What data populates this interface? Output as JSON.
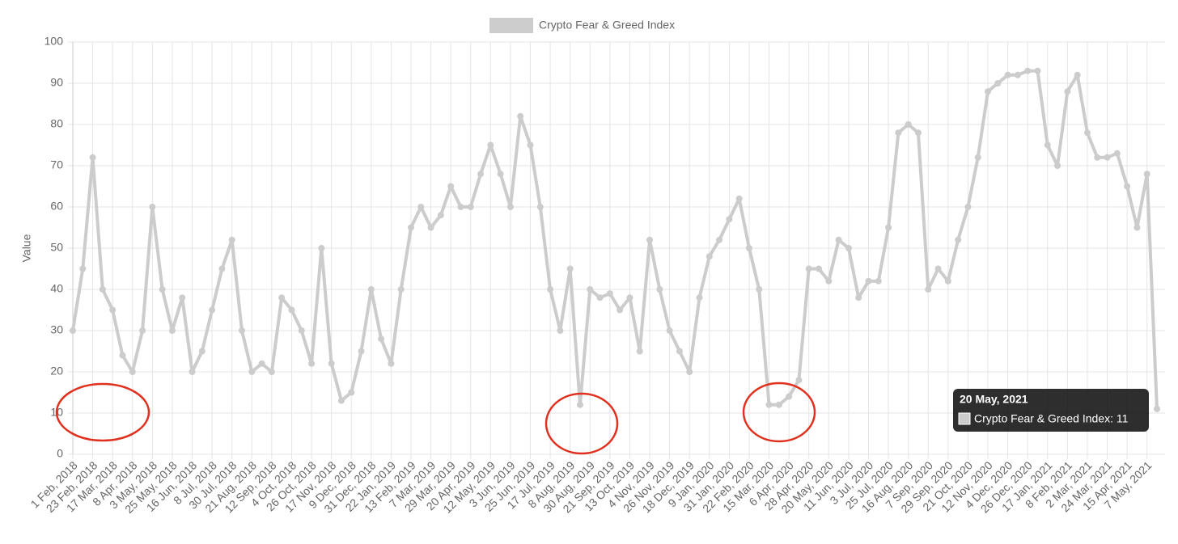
{
  "chart_data": {
    "type": "line",
    "y_label": "Value",
    "ylim": [
      0,
      100
    ],
    "yticks": [
      0,
      10,
      20,
      30,
      40,
      50,
      60,
      70,
      80,
      90,
      100
    ],
    "grid": true,
    "legend": "top",
    "categories": [
      "1 Feb, 2018",
      null,
      "23 Feb, 2018",
      null,
      "17 Mar, 2018",
      null,
      "8 Apr, 2018",
      null,
      "3 May, 2018",
      null,
      "25 May, 2018",
      null,
      "16 Jun, 2018",
      null,
      "8 Jul, 2018",
      null,
      "30 Jul, 2018",
      null,
      "21 Aug, 2018",
      null,
      "12 Sep, 2018",
      null,
      "4 Oct, 2018",
      null,
      "26 Oct, 2018",
      null,
      "17 Nov, 2018",
      null,
      "9 Dec, 2018",
      null,
      "31 Dec, 2018",
      null,
      "22 Jan, 2019",
      null,
      "13 Feb, 2019",
      null,
      "7 Mar, 2019",
      null,
      "29 Mar, 2019",
      null,
      "20 Apr, 2019",
      null,
      "12 May, 2019",
      null,
      "3 Jun, 2019",
      null,
      "25 Jun, 2019",
      null,
      "17 Jul, 2019",
      null,
      "8 Aug, 2019",
      null,
      "30 Aug, 2019",
      null,
      "21 Sep, 2019",
      null,
      "13 Oct, 2019",
      null,
      "4 Nov, 2019",
      null,
      "26 Nov, 2019",
      null,
      "18 Dec, 2019",
      null,
      "9 Jan, 2020",
      null,
      "31 Jan, 2020",
      null,
      "22 Feb, 2020",
      null,
      "15 Mar, 2020",
      null,
      "6 Apr, 2020",
      null,
      "28 Apr, 2020",
      null,
      "20 May, 2020",
      null,
      "11 Jun, 2020",
      null,
      "3 Jul, 2020",
      null,
      "25 Jul, 2020",
      null,
      "16 Aug, 2020",
      null,
      "7 Sep, 2020",
      null,
      "29 Sep, 2020",
      null,
      "21 Oct, 2020",
      null,
      "12 Nov, 2020",
      null,
      "4 Dec, 2020",
      null,
      "26 Dec, 2020",
      null,
      "17 Jan, 2021",
      null,
      "8 Feb, 2021",
      null,
      "2 Mar, 2021",
      null,
      "24 Mar, 2021",
      null,
      "15 Apr, 2021",
      null,
      "7 May, 2021",
      null
    ],
    "series": [
      {
        "name": "Crypto Fear & Greed Index",
        "color": "#cccccc",
        "values": [
          30,
          45,
          72,
          40,
          35,
          24,
          20,
          30,
          60,
          40,
          30,
          38,
          20,
          25,
          35,
          45,
          52,
          30,
          20,
          22,
          20,
          38,
          35,
          30,
          22,
          50,
          22,
          13,
          15,
          25,
          40,
          28,
          22,
          40,
          55,
          60,
          55,
          58,
          65,
          60,
          60,
          68,
          75,
          68,
          60,
          82,
          75,
          60,
          40,
          30,
          45,
          12,
          40,
          38,
          39,
          35,
          38,
          25,
          52,
          40,
          30,
          25,
          20,
          38,
          48,
          52,
          57,
          62,
          50,
          40,
          12,
          12,
          14,
          18,
          45,
          45,
          42,
          52,
          50,
          38,
          42,
          42,
          55,
          78,
          80,
          78,
          40,
          45,
          42,
          52,
          60,
          72,
          88,
          90,
          92,
          92,
          93,
          93,
          75,
          70,
          88,
          92,
          78,
          72,
          72,
          73,
          65,
          55,
          68,
          11
        ]
      }
    ],
    "tooltip": {
      "title": "20 May, 2021",
      "label": "Crypto Fear & Greed Index: 11"
    }
  }
}
